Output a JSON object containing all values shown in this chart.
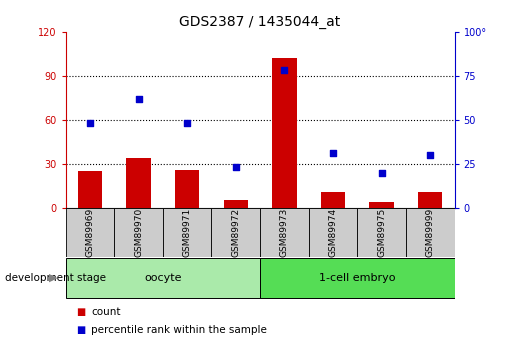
{
  "title": "GDS2387 / 1435044_at",
  "samples": [
    "GSM89969",
    "GSM89970",
    "GSM89971",
    "GSM89972",
    "GSM89973",
    "GSM89974",
    "GSM89975",
    "GSM89999"
  ],
  "counts": [
    25,
    34,
    26,
    5,
    102,
    11,
    4,
    11
  ],
  "percentile_ranks": [
    48,
    62,
    48,
    23,
    78,
    31,
    20,
    30
  ],
  "bar_color": "#cc0000",
  "dot_color": "#0000cc",
  "ylim_left": [
    0,
    120
  ],
  "ylim_right": [
    0,
    100
  ],
  "yticks_left": [
    0,
    30,
    60,
    90,
    120
  ],
  "yticks_right": [
    0,
    25,
    50,
    75,
    100
  ],
  "ytick_labels_left": [
    "0",
    "30",
    "60",
    "90",
    "120"
  ],
  "ytick_labels_right": [
    "0",
    "25",
    "50",
    "75",
    "100°"
  ],
  "gridlines_at": [
    30,
    60,
    90
  ],
  "groups": [
    {
      "label": "oocyte",
      "indices": [
        0,
        1,
        2,
        3
      ],
      "color": "#aaeaaa"
    },
    {
      "label": "1-cell embryo",
      "indices": [
        4,
        5,
        6,
        7
      ],
      "color": "#55dd55"
    }
  ],
  "group_label": "development stage",
  "legend_items": [
    {
      "label": "count",
      "color": "#cc0000"
    },
    {
      "label": "percentile rank within the sample",
      "color": "#0000cc"
    }
  ],
  "background_color": "#ffffff",
  "tick_box_color": "#cccccc",
  "bar_width": 0.5
}
